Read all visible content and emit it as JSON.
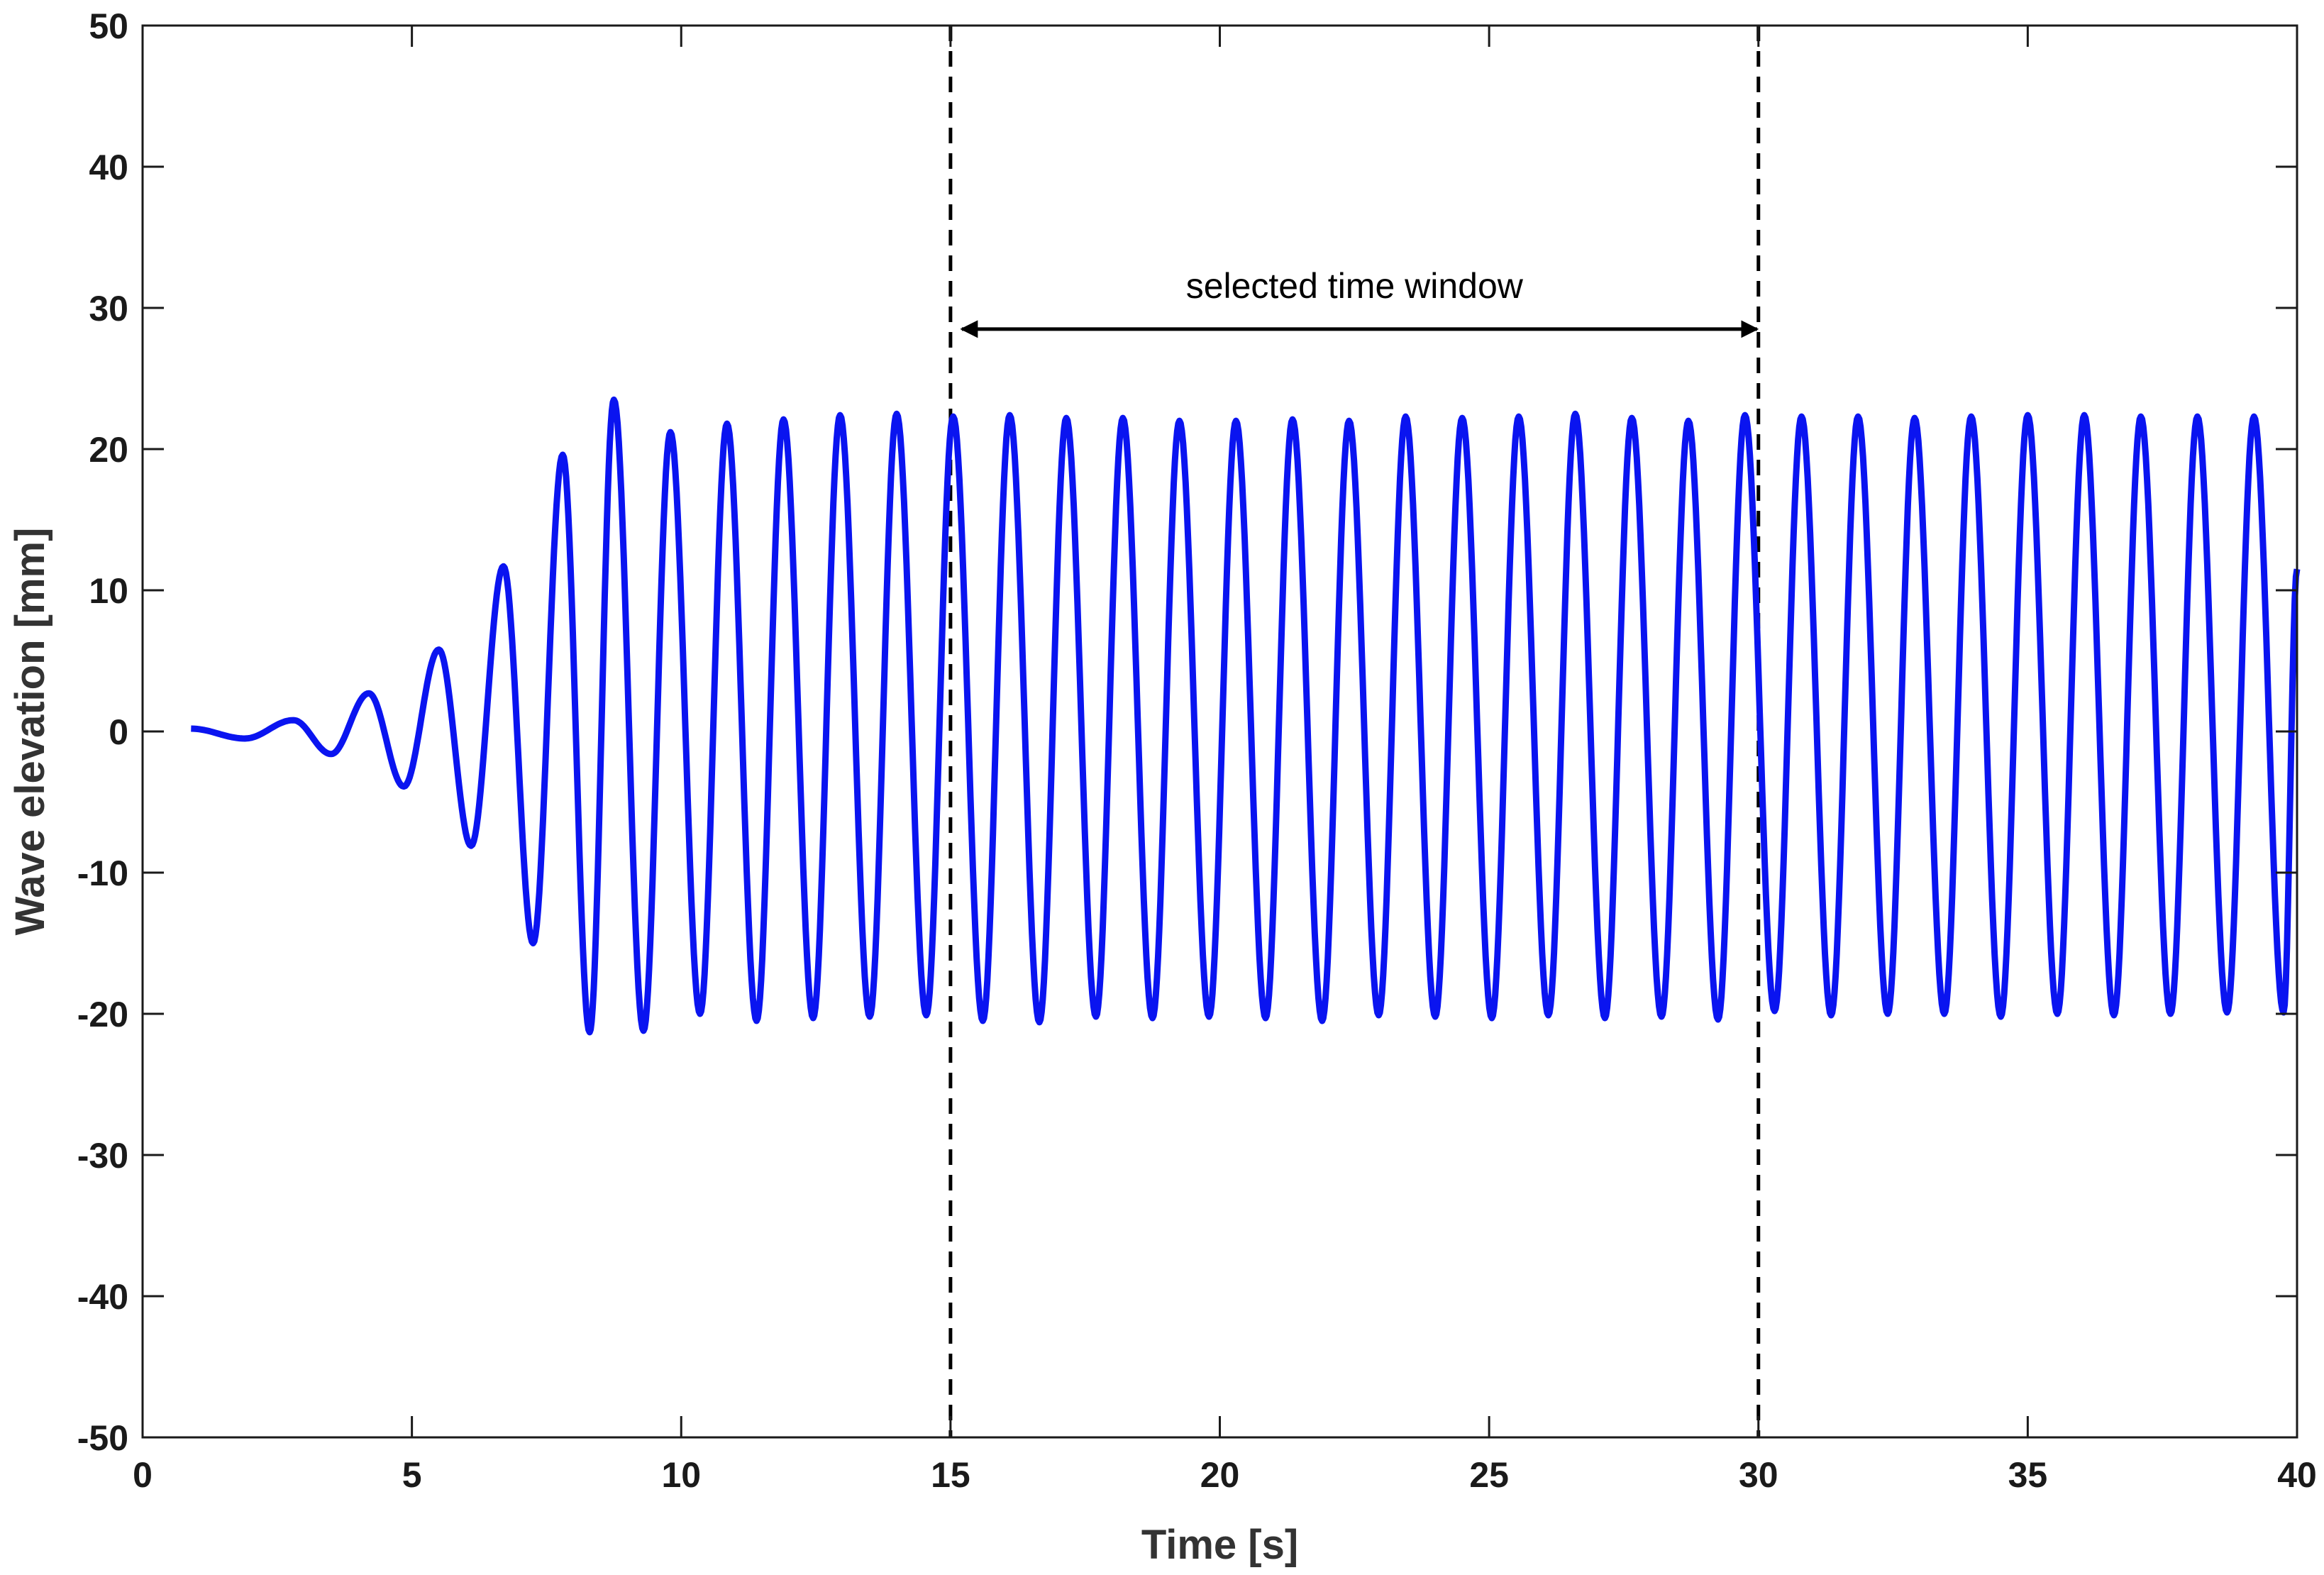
{
  "chart_data": {
    "type": "line",
    "xlabel": "Time [s]",
    "ylabel": "Wave elevation [mm]",
    "xlim": [
      0,
      40
    ],
    "ylim": [
      -50,
      50
    ],
    "xticks": [
      "0",
      "5",
      "10",
      "15",
      "20",
      "25",
      "30",
      "35",
      "40"
    ],
    "yticks": [
      "50",
      "40",
      "30",
      "20",
      "10",
      "0",
      "-10",
      "-20",
      "-30",
      "-40",
      "-50"
    ],
    "grid": false,
    "series": [
      {
        "color": "#0a14f0",
        "x_range": [
          0.9,
          40
        ],
        "peaks": [
          [
            2.8,
            0.8
          ],
          [
            4.2,
            2.7
          ],
          [
            5.5,
            5.8
          ],
          [
            6.7,
            11.7
          ],
          [
            7.8,
            19.6
          ],
          [
            8.75,
            23.5
          ],
          [
            9.8,
            21.2
          ],
          [
            10.85,
            21.8
          ],
          [
            11.9,
            22.1
          ],
          [
            12.95,
            22.4
          ],
          [
            14.0,
            22.5
          ],
          [
            15.05,
            22.3
          ],
          [
            16.1,
            22.4
          ],
          [
            17.15,
            22.2
          ],
          [
            18.2,
            22.2
          ],
          [
            19.25,
            22.0
          ],
          [
            20.3,
            22.0
          ],
          [
            21.35,
            22.1
          ],
          [
            22.4,
            22.0
          ],
          [
            23.45,
            22.3
          ],
          [
            24.5,
            22.2
          ],
          [
            25.55,
            22.3
          ],
          [
            26.6,
            22.5
          ],
          [
            27.65,
            22.2
          ],
          [
            28.7,
            22.0
          ],
          [
            29.75,
            22.4
          ],
          [
            30.8,
            22.3
          ],
          [
            31.85,
            22.3
          ],
          [
            32.9,
            22.2
          ],
          [
            33.95,
            22.3
          ],
          [
            35.0,
            22.4
          ],
          [
            36.05,
            22.4
          ],
          [
            37.1,
            22.3
          ],
          [
            38.15,
            22.3
          ],
          [
            39.2,
            22.3
          ]
        ],
        "troughs": [
          [
            1.9,
            -0.5
          ],
          [
            3.5,
            -1.6
          ],
          [
            4.85,
            -3.9
          ],
          [
            6.1,
            -8.1
          ],
          [
            7.25,
            -15.0
          ],
          [
            8.3,
            -21.3
          ],
          [
            9.3,
            -21.2
          ],
          [
            10.35,
            -20.0
          ],
          [
            11.4,
            -20.5
          ],
          [
            12.45,
            -20.3
          ],
          [
            13.5,
            -20.2
          ],
          [
            14.55,
            -20.1
          ],
          [
            15.6,
            -20.5
          ],
          [
            16.65,
            -20.6
          ],
          [
            17.7,
            -20.2
          ],
          [
            18.75,
            -20.3
          ],
          [
            19.8,
            -20.2
          ],
          [
            20.85,
            -20.3
          ],
          [
            21.9,
            -20.5
          ],
          [
            22.95,
            -20.1
          ],
          [
            24.0,
            -20.2
          ],
          [
            25.05,
            -20.3
          ],
          [
            26.1,
            -20.1
          ],
          [
            27.15,
            -20.3
          ],
          [
            28.2,
            -20.2
          ],
          [
            29.25,
            -20.4
          ],
          [
            30.3,
            -19.8
          ],
          [
            31.35,
            -20.1
          ],
          [
            32.4,
            -20.0
          ],
          [
            33.45,
            -20.0
          ],
          [
            34.5,
            -20.2
          ],
          [
            35.55,
            -20.0
          ],
          [
            36.6,
            -20.1
          ],
          [
            37.65,
            -20.0
          ],
          [
            38.7,
            -19.9
          ],
          [
            39.75,
            -19.9
          ]
        ],
        "end_value": 11.5
      }
    ],
    "markers": {
      "vlines": [
        15,
        30
      ],
      "arrow": {
        "x_from": 15,
        "x_to": 30,
        "y": 28.5
      },
      "annotation": {
        "text": "selected time window",
        "x": 22.5,
        "y": 31.5
      }
    }
  }
}
